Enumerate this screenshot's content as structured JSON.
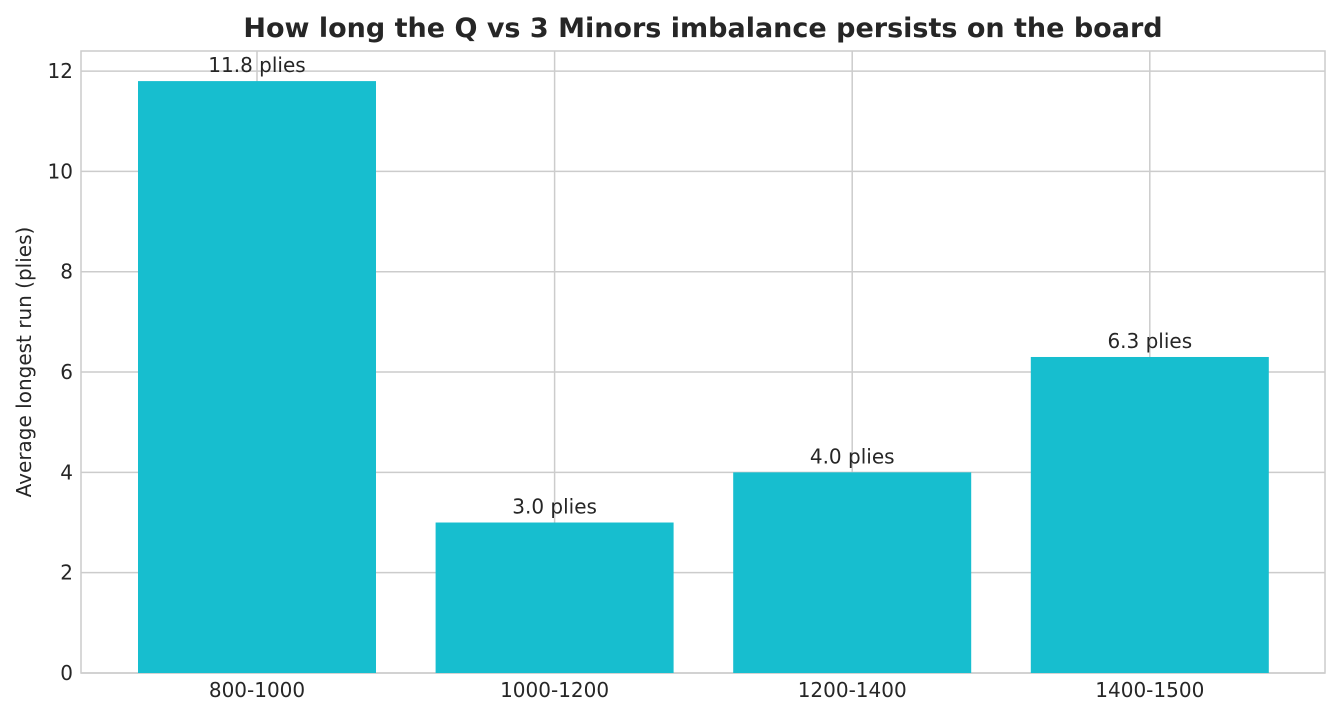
{
  "chart_data": {
    "type": "bar",
    "title": "How long the Q vs 3 Minors imbalance persists on the board",
    "xlabel": "",
    "ylabel": "Average longest run (plies)",
    "categories": [
      "800-1000",
      "1000-1200",
      "1200-1400",
      "1400-1500"
    ],
    "values": [
      11.8,
      3.0,
      4.0,
      6.3
    ],
    "data_labels": [
      "11.8 plies",
      "3.0 plies",
      "4.0 plies",
      "6.3 plies"
    ],
    "ylim": [
      0,
      12.4
    ],
    "yticks": [
      0,
      2,
      4,
      6,
      8,
      10,
      12
    ],
    "grid": true,
    "legend": "none",
    "bar_color": "#17becf",
    "grid_color": "#cccccc",
    "text_color": "#262626"
  }
}
